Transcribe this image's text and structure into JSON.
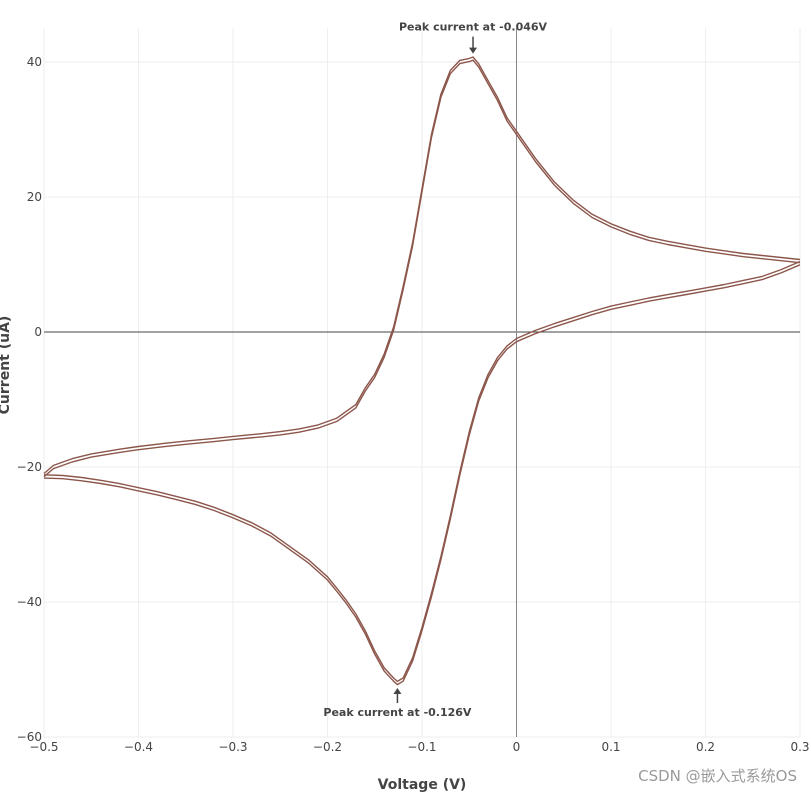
{
  "chart_data": {
    "type": "line",
    "title": "",
    "xlabel": "Voltage (V)",
    "ylabel": "Current (uA)",
    "xlim": [
      -0.5,
      0.3
    ],
    "ylim": [
      -60,
      45
    ],
    "x_ticks": [
      -0.5,
      -0.4,
      -0.3,
      -0.2,
      -0.1,
      0,
      0.1,
      0.2,
      0.3
    ],
    "x_tick_labels": [
      "−0.5",
      "−0.4",
      "−0.3",
      "−0.2",
      "−0.1",
      "0",
      "0.1",
      "0.2",
      "0.3"
    ],
    "y_ticks": [
      -60,
      -40,
      -20,
      0,
      20,
      40
    ],
    "y_tick_labels": [
      "−60",
      "−40",
      "−20",
      "0",
      "20",
      "40"
    ],
    "grid": true,
    "zero_lines": true,
    "line_color": "#8c564b",
    "series": [
      {
        "x": [
          -0.5,
          -0.49,
          -0.47,
          -0.45,
          -0.42,
          -0.4,
          -0.37,
          -0.35,
          -0.32,
          -0.3,
          -0.27,
          -0.25,
          -0.23,
          -0.21,
          -0.19,
          -0.17,
          -0.16,
          -0.15,
          -0.14,
          -0.13,
          -0.12,
          -0.11,
          -0.1,
          -0.09,
          -0.08,
          -0.07,
          -0.06,
          -0.05,
          -0.046,
          -0.04,
          -0.03,
          -0.02,
          -0.01,
          0.0,
          0.02,
          0.04,
          0.06,
          0.08,
          0.1,
          0.12,
          0.14,
          0.16,
          0.18,
          0.2,
          0.22,
          0.24,
          0.26,
          0.28,
          0.3
        ],
        "y": [
          -21.2,
          -20.0,
          -19.0,
          -18.3,
          -17.6,
          -17.2,
          -16.7,
          -16.4,
          -16.0,
          -15.7,
          -15.3,
          -15.0,
          -14.6,
          -14.0,
          -13.0,
          -11.0,
          -8.5,
          -6.5,
          -3.5,
          0.5,
          6.5,
          13.0,
          21.0,
          29.0,
          35.0,
          38.5,
          40.0,
          40.3,
          40.5,
          39.5,
          37.0,
          34.5,
          31.5,
          29.5,
          25.5,
          22.0,
          19.3,
          17.2,
          15.8,
          14.7,
          13.8,
          13.2,
          12.7,
          12.2,
          11.8,
          11.4,
          11.1,
          10.8,
          10.5
        ]
      },
      {
        "x": [
          0.3,
          0.28,
          0.26,
          0.24,
          0.22,
          0.2,
          0.18,
          0.16,
          0.14,
          0.12,
          0.1,
          0.08,
          0.06,
          0.04,
          0.02,
          0.0,
          -0.01,
          -0.02,
          -0.03,
          -0.04,
          -0.05,
          -0.06,
          -0.07,
          -0.08,
          -0.09,
          -0.1,
          -0.11,
          -0.12,
          -0.126,
          -0.13,
          -0.14,
          -0.15,
          -0.16,
          -0.17,
          -0.18,
          -0.19,
          -0.2,
          -0.22,
          -0.24,
          -0.26,
          -0.28,
          -0.3,
          -0.32,
          -0.34,
          -0.36,
          -0.38,
          -0.4,
          -0.42,
          -0.44,
          -0.46,
          -0.48,
          -0.5
        ],
        "y": [
          10.2,
          9.0,
          8.0,
          7.4,
          6.8,
          6.3,
          5.8,
          5.3,
          4.8,
          4.2,
          3.6,
          2.8,
          1.9,
          1.0,
          0.0,
          -1.2,
          -2.3,
          -4.0,
          -6.5,
          -10.0,
          -15.0,
          -21.0,
          -27.5,
          -33.5,
          -39.0,
          -44.0,
          -48.5,
          -51.5,
          -52.0,
          -51.5,
          -50.0,
          -47.5,
          -44.5,
          -42.0,
          -40.0,
          -38.2,
          -36.5,
          -34.0,
          -32.0,
          -30.0,
          -28.5,
          -27.3,
          -26.2,
          -25.3,
          -24.6,
          -23.9,
          -23.3,
          -22.7,
          -22.2,
          -21.8,
          -21.5,
          -21.4
        ]
      }
    ],
    "annotations": [
      {
        "text": "Peak current at -0.046V",
        "x": -0.046,
        "y": 40.5,
        "arrow": "down"
      },
      {
        "text": "Peak current at -0.126V",
        "x": -0.126,
        "y": -52.0,
        "arrow": "up"
      }
    ]
  },
  "watermark": "CSDN @嵌入式系统OS"
}
